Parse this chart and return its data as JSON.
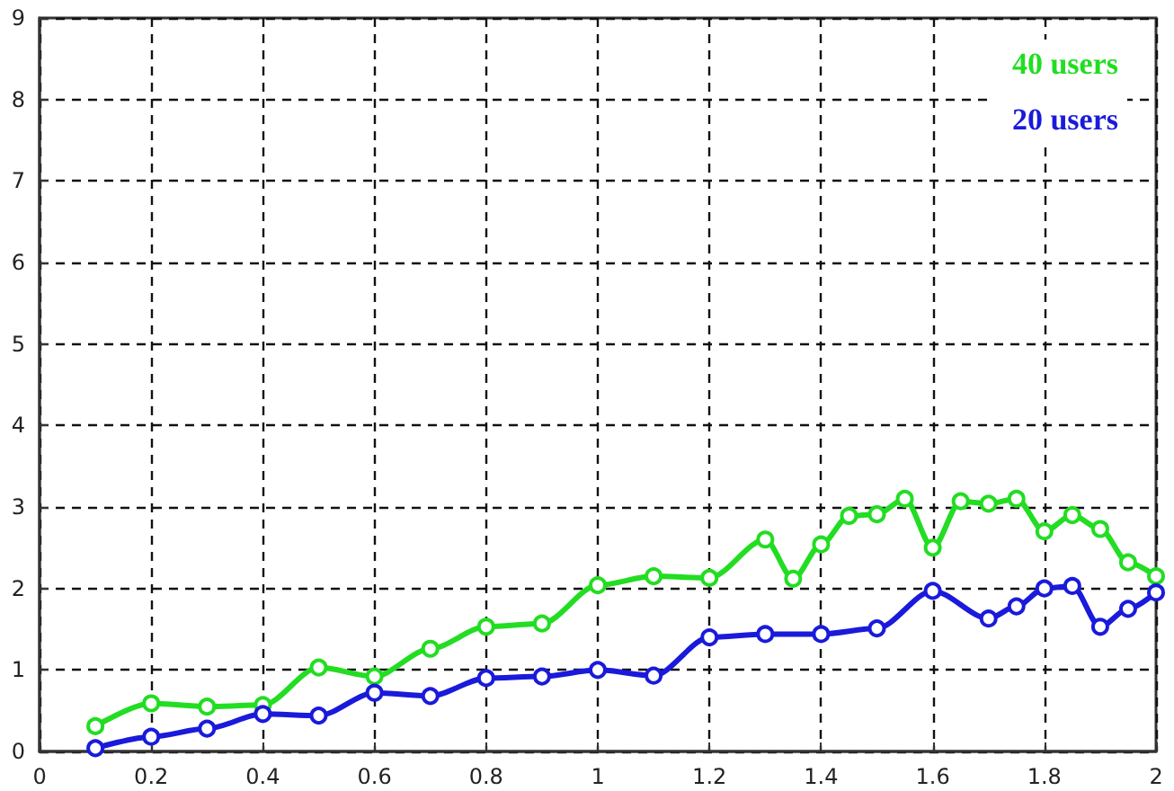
{
  "chart_data": {
    "type": "line",
    "marker": "circle",
    "line_style": "solid",
    "grid": true,
    "legend": "top right",
    "xlim": [
      0,
      2
    ],
    "xticks": [
      0,
      0.2,
      0.4,
      0.6,
      0.8,
      1,
      1.2,
      1.4,
      1.6,
      1.8,
      2
    ],
    "ylim": [
      0,
      9
    ],
    "yticks": [
      0,
      1,
      2,
      3,
      4,
      5,
      6,
      7,
      8,
      9
    ],
    "series": [
      {
        "name": "40 users",
        "color": "#22dd22",
        "x": [
          0.1,
          0.2,
          0.3,
          0.4,
          0.5,
          0.6,
          0.7,
          0.8,
          0.9,
          1.0,
          1.1,
          1.2,
          1.3,
          1.35,
          1.4,
          1.45,
          1.5,
          1.55,
          1.6,
          1.65,
          1.7,
          1.75,
          1.8,
          1.85,
          1.9,
          1.95,
          2.0
        ],
        "values": [
          0.31,
          0.59,
          0.55,
          0.57,
          1.03,
          0.92,
          1.26,
          1.53,
          1.57,
          2.04,
          2.15,
          2.13,
          2.6,
          2.12,
          2.54,
          2.89,
          2.91,
          3.1,
          2.5,
          3.07,
          3.04,
          3.1,
          2.7,
          2.9,
          2.73,
          2.32,
          2.15
        ]
      },
      {
        "name": "20 users",
        "color": "#1a1adb",
        "x": [
          0.1,
          0.2,
          0.3,
          0.4,
          0.5,
          0.6,
          0.7,
          0.8,
          0.9,
          1.0,
          1.1,
          1.2,
          1.3,
          1.4,
          1.5,
          1.6,
          1.7,
          1.75,
          1.8,
          1.85,
          1.9,
          1.95,
          2.0
        ],
        "values": [
          0.04,
          0.18,
          0.28,
          0.46,
          0.44,
          0.72,
          0.68,
          0.9,
          0.92,
          1.0,
          0.93,
          1.4,
          1.44,
          1.44,
          1.51,
          1.97,
          1.63,
          1.78,
          2.0,
          2.03,
          1.53,
          1.75,
          1.95
        ]
      }
    ]
  }
}
